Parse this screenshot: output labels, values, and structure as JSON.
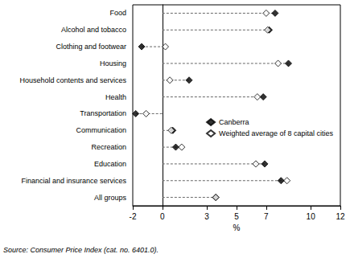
{
  "chart_data": {
    "type": "dot",
    "orientation": "horizontal",
    "categories": [
      "Food",
      "Alcohol and tobacco",
      "Clothing and footwear",
      "Housing",
      "Household contents and services",
      "Health",
      "Transportation",
      "Communication",
      "Recreation",
      "Education",
      "Financial and insurance services",
      "All groups"
    ],
    "series": [
      {
        "name": "Canberra",
        "color": "#000000",
        "marker": "diamond",
        "values": [
          7.6,
          7.2,
          -1.4,
          8.5,
          1.8,
          6.8,
          -1.8,
          0.7,
          0.9,
          6.9,
          8.0,
          3.6
        ]
      },
      {
        "name": "Weighted average of 8 capital cities",
        "color": "#000000",
        "marker": "diamond-open",
        "values": [
          7.0,
          7.1,
          0.2,
          7.8,
          0.5,
          6.4,
          -1.1,
          0.6,
          1.3,
          6.3,
          8.4,
          3.6
        ]
      }
    ],
    "x_label": "%",
    "xlim": [
      -2,
      12
    ],
    "xticks": [
      -2,
      0,
      3,
      5,
      7,
      10,
      12
    ],
    "grid": false,
    "legend": "right",
    "source": "Source: Consumer Price Index (cat. no. 6401.0)."
  }
}
